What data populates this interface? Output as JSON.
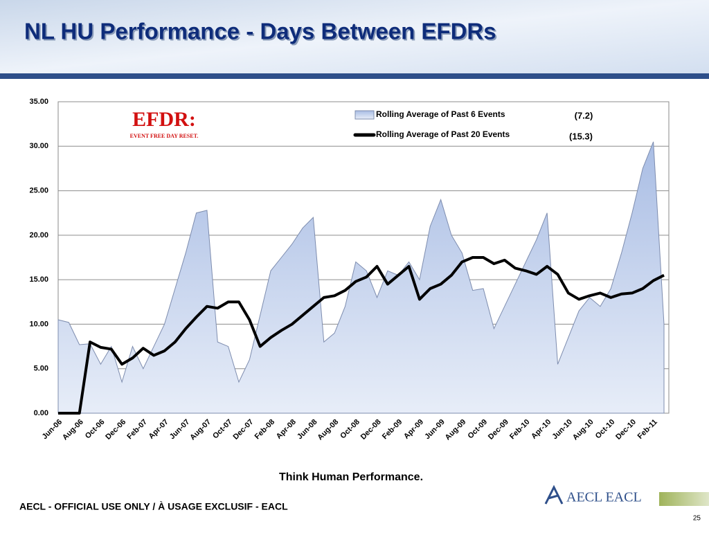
{
  "chart_data": {
    "type": "area-line",
    "title": "NL HU Performance - Days Between EFDRs",
    "categories": [
      "Jun-06",
      null,
      "Aug-06",
      null,
      "Oct-06",
      null,
      "Dec-06",
      null,
      "Feb-07",
      null,
      "Apr-07",
      null,
      "Jun-07",
      null,
      "Aug-07",
      null,
      "Oct-07",
      null,
      "Dec-07",
      null,
      "Feb-08",
      null,
      "Apr-08",
      null,
      "Jun-08",
      null,
      "Aug-08",
      null,
      "Oct-08",
      null,
      "Dec-08",
      null,
      "Feb-09",
      null,
      "Apr-09",
      null,
      "Jun-09",
      null,
      "Aug-09",
      null,
      "Oct-09",
      null,
      "Dec-09",
      null,
      "Feb-10",
      null,
      "Apr-10",
      null,
      "Jun-10",
      null,
      "Aug-10",
      null,
      "Oct-10",
      null,
      "Dec-10",
      null,
      "Feb-11",
      null
    ],
    "series": [
      {
        "name": "Rolling Average of Past 6 Events",
        "color": "#b9c9e9",
        "stroke": "#7d8cae",
        "values": [
          10.5,
          10.2,
          7.7,
          7.8,
          5.5,
          7.5,
          3.5,
          7.5,
          5,
          7.5,
          10,
          14,
          18,
          22.5,
          22.8,
          8,
          7.5,
          3.5,
          6,
          11,
          16,
          17.5,
          19,
          20.8,
          22,
          8,
          9,
          12,
          17,
          16,
          13,
          16,
          15.5,
          17,
          15,
          21,
          24,
          20,
          18,
          13.8,
          14,
          9.5,
          12,
          14.5,
          17,
          19.5,
          22.5,
          5.5,
          8.5,
          11.5,
          13,
          12,
          14,
          18,
          22.5,
          27.5,
          30.5,
          10
        ]
      },
      {
        "name": "Rolling Average of Past 20 Events",
        "color": "#000000",
        "values": [
          0,
          0,
          0,
          8,
          7.4,
          7.2,
          5.5,
          6.2,
          7.3,
          6.5,
          7,
          8,
          9.5,
          10.8,
          12,
          11.8,
          12.5,
          12.5,
          10.5,
          7.5,
          8.5,
          9.3,
          10,
          11,
          12,
          13,
          13.2,
          13.8,
          14.8,
          15.3,
          16.5,
          14.5,
          15.5,
          16.5,
          12.8,
          14,
          14.5,
          15.5,
          17,
          17.5,
          17.5,
          16.8,
          17.2,
          16.3,
          16,
          15.6,
          16.5,
          15.6,
          13.5,
          12.8,
          13.2,
          13.5,
          13,
          13.4,
          13.5,
          14,
          14.9,
          15.5
        ]
      }
    ],
    "annotations": [
      "(7.2)",
      "(15.3)"
    ],
    "ylim": [
      0,
      35
    ],
    "yticks": [
      {
        "value": 0,
        "label": "0.00"
      },
      {
        "value": 5,
        "label": "5.00"
      },
      {
        "value": 10,
        "label": "10.00"
      },
      {
        "value": 15,
        "label": "15.00"
      },
      {
        "value": 20,
        "label": "20.00"
      },
      {
        "value": 25,
        "label": "25.00"
      },
      {
        "value": 30,
        "label": "30.00"
      },
      {
        "value": 35,
        "label": "35.00"
      }
    ],
    "grid": true,
    "legend": "top-right"
  },
  "logo": {
    "title": "EFDR:",
    "subtitle": "EVENT FREE DAY RESET."
  },
  "slide": {
    "tagline": "Think Human Performance.",
    "footer": "AECL - OFFICIAL USE ONLY / À USAGE EXCLUSIF - EACL",
    "brand": "AECL EACL",
    "page": "25"
  }
}
